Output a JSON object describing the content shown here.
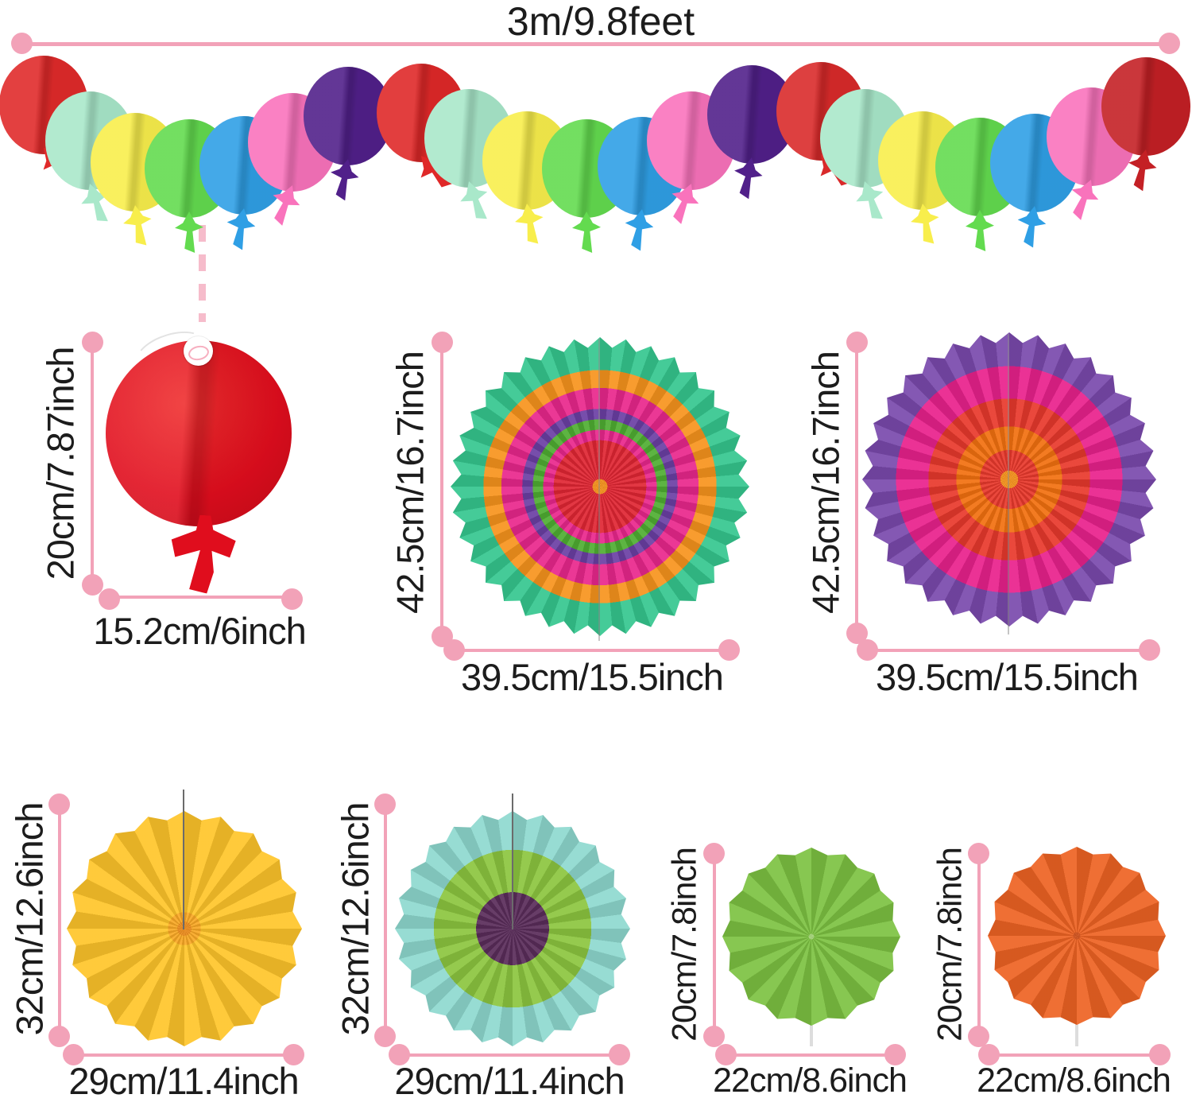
{
  "title": "3m/9.8feet",
  "colors": {
    "measure": "#F2A2B8",
    "ink": "#1c1c1c",
    "dashed": "#F6BCCB"
  },
  "garland": {
    "description": "multicolor 3D paper balloon garland",
    "balloon_colors": [
      "#E02A2A",
      "#A9E8CA",
      "#F8EE4C",
      "#63DB4F",
      "#2F9FE5",
      "#F973BC",
      "#51208A",
      "#DF2828",
      "#A9E8CA",
      "#F8EE4C",
      "#63DB4F",
      "#2F9FE5",
      "#F973BC",
      "#51208A",
      "#D92A2A",
      "#A9E8CA",
      "#F8EE4C",
      "#63DB4F",
      "#2F9FE5",
      "#F973BC",
      "#C42025"
    ]
  },
  "items": [
    {
      "id": "balloon-cutout",
      "name": "red paper balloon",
      "height_label": "20cm/7.87inch",
      "width_label": "15.2cm/6inch",
      "color": "#E00D1D"
    },
    {
      "id": "fan-multicolor",
      "name": "multicolor paper fan",
      "pleats": 36,
      "height_label": "42.5cm/16.7inch",
      "width_label": "39.5cm/15.5inch",
      "rings": [
        {
          "color": "#F7941D",
          "to": 5
        },
        {
          "color": "#E02633",
          "to": 31
        },
        {
          "color": "#E9278C",
          "to": 38
        },
        {
          "color": "#4FAE32",
          "to": 45
        },
        {
          "color": "#6B3FA4",
          "to": 52
        },
        {
          "color": "#E9278C",
          "to": 66
        },
        {
          "color": "#F7941D",
          "to": 78
        },
        {
          "color": "#35C78F",
          "to": 100
        }
      ]
    },
    {
      "id": "fan-purple",
      "name": "purple pink paper fan",
      "pleats": 32,
      "height_label": "42.5cm/16.7inch",
      "width_label": "39.5cm/15.5inch",
      "rings": [
        {
          "color": "#F7941D",
          "to": 6
        },
        {
          "color": "#E8392C",
          "to": 20
        },
        {
          "color": "#F2700F",
          "to": 36
        },
        {
          "color": "#E8392C",
          "to": 55
        },
        {
          "color": "#E9218C",
          "to": 77
        },
        {
          "color": "#7A4AAD",
          "to": 100
        }
      ]
    },
    {
      "id": "fan-yellow",
      "name": "yellow paper fan",
      "pleats": 20,
      "height_label": "32cm/12.6inch",
      "width_label": "29cm/11.4inch",
      "rings": [
        {
          "color": "#EF8E1E",
          "to": 6
        },
        {
          "color": "#F9A825",
          "to": 14
        },
        {
          "color": "#FFC52A",
          "to": 100
        }
      ]
    },
    {
      "id": "fan-teal",
      "name": "teal green purple paper fan",
      "pleats": 24,
      "height_label": "32cm/12.6inch",
      "width_label": "29cm/11.4inch",
      "rings": [
        {
          "color": "#5A2D5A",
          "to": 31
        },
        {
          "color": "#8CC63F",
          "to": 67
        },
        {
          "color": "#8ED9CF",
          "to": 100
        }
      ]
    },
    {
      "id": "fan-green",
      "name": "green paper fan",
      "pleats": 16,
      "height_label": "20cm/7.8inch",
      "width_label": "22cm/8.6inch",
      "rings": [
        {
          "color": "#A8D87C",
          "to": 3
        },
        {
          "color": "#7DC242",
          "to": 100
        }
      ]
    },
    {
      "id": "fan-orange",
      "name": "orange paper fan",
      "pleats": 16,
      "height_label": "20cm/7.8inch",
      "width_label": "22cm/8.6inch",
      "rings": [
        {
          "color": "#D4541E",
          "to": 4
        },
        {
          "color": "#EE6323",
          "to": 100
        }
      ]
    }
  ]
}
